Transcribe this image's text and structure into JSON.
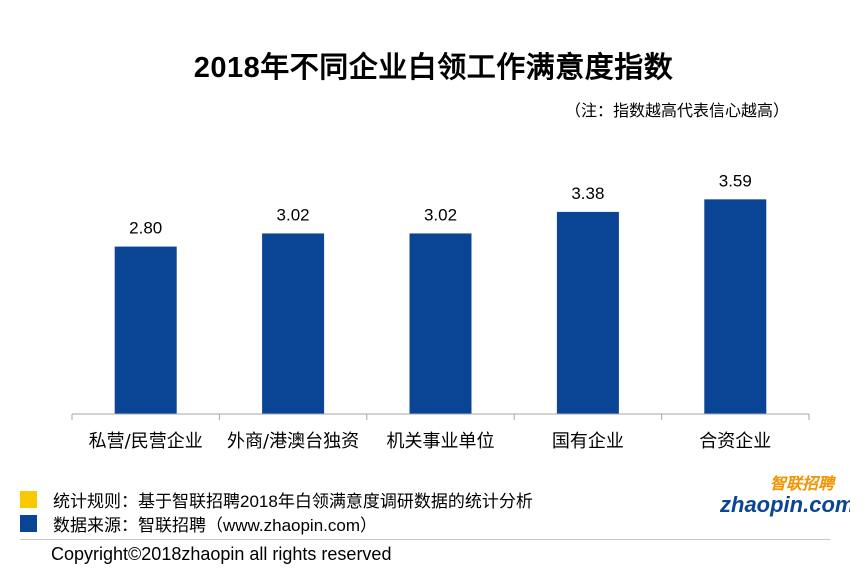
{
  "chart_data": {
    "type": "bar",
    "title": "2018年不同企业白领工作满意度指数",
    "note": "（注：指数越高代表信心越高）",
    "categories": [
      "私营/民营企业",
      "外商/港澳台独资",
      "机关事业单位",
      "国有企业",
      "合资企业"
    ],
    "values": [
      2.8,
      3.02,
      3.02,
      3.38,
      3.59
    ],
    "value_labels": [
      "2.80",
      "3.02",
      "3.02",
      "3.38",
      "3.59"
    ],
    "xlabel": "",
    "ylabel": "",
    "ylim": [
      0,
      4.75
    ],
    "grid": false,
    "bar_color": "#0a4595"
  },
  "footer": {
    "rule_text": "统计规则：基于智联招聘2018年白领满意度调研数据的统计分析",
    "rule_color": "#f8c800",
    "source_text": "数据来源：智联招聘（www.zhaopin.com）",
    "source_color": "#0a4595",
    "copyright": "Copyright©2018zhaopin all rights reserved"
  },
  "logo": {
    "cn_text": "智联招聘",
    "domain_text": "zhaopin.com",
    "orange": "#f29400",
    "blue": "#0a4595"
  }
}
